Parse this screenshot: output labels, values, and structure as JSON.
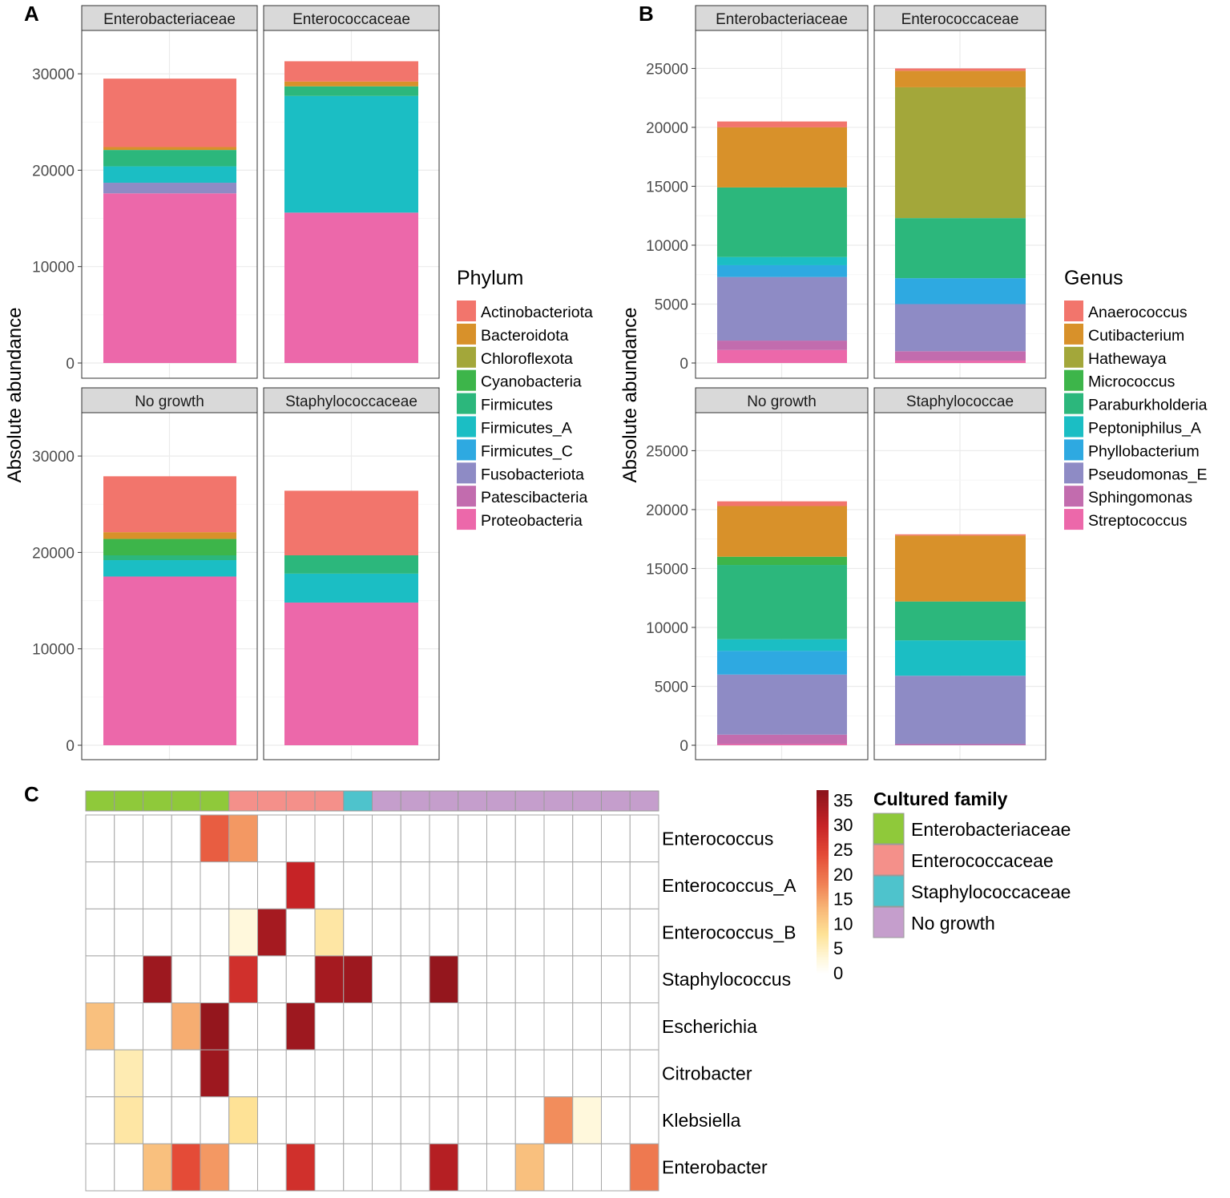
{
  "chart_data": [
    {
      "type": "bar",
      "stacked": true,
      "panel_label": "A",
      "ylabel": "Absolute abundance",
      "ylim": [
        0,
        33000
      ],
      "yticks": [
        0,
        10000,
        20000,
        30000
      ],
      "grid": true,
      "legend": {
        "title": "Phylum",
        "placement": "right",
        "entries": [
          {
            "name": "Actinobacteriota",
            "color": "#F2756C"
          },
          {
            "name": "Bacteroidota",
            "color": "#D8912A"
          },
          {
            "name": "Chloroflexota",
            "color": "#A3A73A"
          },
          {
            "name": "Cyanobacteria",
            "color": "#3DB54A"
          },
          {
            "name": "Firmicutes",
            "color": "#2CB77C"
          },
          {
            "name": "Firmicutes_A",
            "color": "#1BBEC4"
          },
          {
            "name": "Firmicutes_C",
            "color": "#2EA9E1"
          },
          {
            "name": "Fusobacteriota",
            "color": "#8E8BC5"
          },
          {
            "name": "Patescibacteria",
            "color": "#C26CAE"
          },
          {
            "name": "Proteobacteria",
            "color": "#EC68AA"
          }
        ]
      },
      "facets": [
        {
          "title": "Enterobacteriaceae",
          "stack": [
            {
              "name": "Proteobacteria",
              "value": 17600
            },
            {
              "name": "Fusobacteriota",
              "value": 1100
            },
            {
              "name": "Firmicutes_A",
              "value": 1700
            },
            {
              "name": "Firmicutes",
              "value": 1700
            },
            {
              "name": "Bacteroidota",
              "value": 300
            },
            {
              "name": "Actinobacteriota",
              "value": 7100
            }
          ]
        },
        {
          "title": "Enterococcaceae",
          "stack": [
            {
              "name": "Proteobacteria",
              "value": 15600
            },
            {
              "name": "Firmicutes_A",
              "value": 12100
            },
            {
              "name": "Firmicutes",
              "value": 1000
            },
            {
              "name": "Bacteroidota",
              "value": 500
            },
            {
              "name": "Actinobacteriota",
              "value": 2100
            }
          ]
        },
        {
          "title": "No growth",
          "stack": [
            {
              "name": "Proteobacteria",
              "value": 17500
            },
            {
              "name": "Firmicutes_A",
              "value": 1700
            },
            {
              "name": "Firmicutes",
              "value": 500
            },
            {
              "name": "Cyanobacteria",
              "value": 1700
            },
            {
              "name": "Bacteroidota",
              "value": 700
            },
            {
              "name": "Actinobacteriota",
              "value": 5800
            }
          ]
        },
        {
          "title": "Staphylococcaceae",
          "stack": [
            {
              "name": "Proteobacteria",
              "value": 14800
            },
            {
              "name": "Firmicutes_A",
              "value": 3000
            },
            {
              "name": "Firmicutes",
              "value": 1900
            },
            {
              "name": "Actinobacteriota",
              "value": 6700
            }
          ]
        }
      ]
    },
    {
      "type": "bar",
      "stacked": true,
      "panel_label": "B",
      "ylabel": "Absolute abundance",
      "ylim": [
        0,
        27000
      ],
      "yticks": [
        0,
        5000,
        10000,
        15000,
        20000,
        25000
      ],
      "grid": true,
      "legend": {
        "title": "Genus",
        "placement": "right",
        "entries": [
          {
            "name": "Anaerococcus",
            "color": "#F2756C"
          },
          {
            "name": "Cutibacterium",
            "color": "#D8912A"
          },
          {
            "name": "Hathewaya",
            "color": "#A3A73A"
          },
          {
            "name": "Micrococcus",
            "color": "#3DB54A"
          },
          {
            "name": "Paraburkholderia",
            "color": "#2CB77C"
          },
          {
            "name": "Peptoniphilus_A",
            "color": "#1BBEC4"
          },
          {
            "name": "Phyllobacterium",
            "color": "#2EA9E1"
          },
          {
            "name": "Pseudomonas_E",
            "color": "#8E8BC5"
          },
          {
            "name": "Sphingomonas",
            "color": "#C26CAE"
          },
          {
            "name": "Streptococcus",
            "color": "#EC68AA"
          }
        ]
      },
      "facets": [
        {
          "title": "Enterobacteriaceae",
          "stack": [
            {
              "name": "Streptococcus",
              "value": 1100
            },
            {
              "name": "Sphingomonas",
              "value": 800
            },
            {
              "name": "Pseudomonas_E",
              "value": 5400
            },
            {
              "name": "Phyllobacterium",
              "value": 1000
            },
            {
              "name": "Peptoniphilus_A",
              "value": 700
            },
            {
              "name": "Paraburkholderia",
              "value": 5900
            },
            {
              "name": "Cutibacterium",
              "value": 5100
            },
            {
              "name": "Anaerococcus",
              "value": 500
            }
          ]
        },
        {
          "title": "Enterococcaceae",
          "stack": [
            {
              "name": "Streptococcus",
              "value": 200
            },
            {
              "name": "Sphingomonas",
              "value": 800
            },
            {
              "name": "Pseudomonas_E",
              "value": 4000
            },
            {
              "name": "Phyllobacterium",
              "value": 2200
            },
            {
              "name": "Paraburkholderia",
              "value": 5100
            },
            {
              "name": "Hathewaya",
              "value": 11100
            },
            {
              "name": "Cutibacterium",
              "value": 1400
            },
            {
              "name": "Anaerococcus",
              "value": 200
            }
          ]
        },
        {
          "title": "No growth",
          "stack": [
            {
              "name": "Streptococcus",
              "value": 100
            },
            {
              "name": "Sphingomonas",
              "value": 800
            },
            {
              "name": "Pseudomonas_E",
              "value": 5100
            },
            {
              "name": "Phyllobacterium",
              "value": 2000
            },
            {
              "name": "Peptoniphilus_A",
              "value": 1000
            },
            {
              "name": "Paraburkholderia",
              "value": 6300
            },
            {
              "name": "Micrococcus",
              "value": 700
            },
            {
              "name": "Cutibacterium",
              "value": 4300
            },
            {
              "name": "Anaerococcus",
              "value": 400
            }
          ]
        },
        {
          "title": "Staphylococcae",
          "stack": [
            {
              "name": "Sphingomonas",
              "value": 100
            },
            {
              "name": "Pseudomonas_E",
              "value": 5800
            },
            {
              "name": "Peptoniphilus_A",
              "value": 3000
            },
            {
              "name": "Paraburkholderia",
              "value": 3300
            },
            {
              "name": "Cutibacterium",
              "value": 5600
            },
            {
              "name": "Anaerococcus",
              "value": 100
            }
          ]
        }
      ]
    },
    {
      "type": "heatmap",
      "panel_label": "C",
      "rows": [
        "Enterococcus",
        "Enterococcus_A",
        "Enterococcus_B",
        "Staphylococcus",
        "Escherichia",
        "Citrobacter",
        "Klebsiella",
        "Enterobacter"
      ],
      "column_annotation": [
        "Enterobacteriaceae",
        "Enterobacteriaceae",
        "Enterobacteriaceae",
        "Enterobacteriaceae",
        "Enterobacteriaceae",
        "Enterococcaceae",
        "Enterococcaceae",
        "Enterococcaceae",
        "Enterococcaceae",
        "Staphylococcaceae",
        "No growth",
        "No growth",
        "No growth",
        "No growth",
        "No growth",
        "No growth",
        "No growth",
        "No growth",
        "No growth",
        "No growth"
      ],
      "values": [
        [
          0,
          0,
          0,
          0,
          22,
          16,
          0,
          0,
          0,
          0,
          0,
          0,
          0,
          0,
          0,
          0,
          0,
          0,
          0,
          0
        ],
        [
          0,
          0,
          0,
          0,
          0,
          0,
          0,
          30,
          0,
          0,
          0,
          0,
          0,
          0,
          0,
          0,
          0,
          0,
          0,
          0
        ],
        [
          0,
          0,
          0,
          0,
          0,
          3,
          34,
          0,
          7,
          0,
          0,
          0,
          0,
          0,
          0,
          0,
          0,
          0,
          0,
          0
        ],
        [
          0,
          0,
          35,
          0,
          0,
          28,
          0,
          0,
          34,
          35,
          0,
          0,
          36,
          0,
          0,
          0,
          0,
          0,
          0,
          0
        ],
        [
          12,
          0,
          0,
          14,
          36,
          0,
          0,
          35,
          0,
          0,
          0,
          0,
          0,
          0,
          0,
          0,
          0,
          0,
          0,
          0
        ],
        [
          0,
          6,
          0,
          0,
          35,
          0,
          0,
          0,
          0,
          0,
          0,
          0,
          0,
          0,
          0,
          0,
          0,
          0,
          0,
          0
        ],
        [
          0,
          7,
          0,
          0,
          0,
          8,
          0,
          0,
          0,
          0,
          0,
          0,
          0,
          0,
          0,
          0,
          17,
          3,
          0,
          0
        ],
        [
          0,
          0,
          12,
          24,
          16,
          0,
          0,
          28,
          0,
          0,
          0,
          0,
          32,
          0,
          0,
          12,
          0,
          0,
          0,
          19
        ]
      ],
      "colorbar": {
        "min": 0,
        "max": 37,
        "ticks": [
          0,
          5,
          10,
          15,
          20,
          25,
          30,
          35
        ]
      },
      "annotation_legend": {
        "title": "Cultured family",
        "entries": [
          {
            "name": "Enterobacteriaceae",
            "color": "#8FC93A"
          },
          {
            "name": "Enterococcaceae",
            "color": "#F4908A"
          },
          {
            "name": "Staphylococcaceae",
            "color": "#4EC3CC"
          },
          {
            "name": "No growth",
            "color": "#C59ECC"
          }
        ]
      }
    }
  ]
}
